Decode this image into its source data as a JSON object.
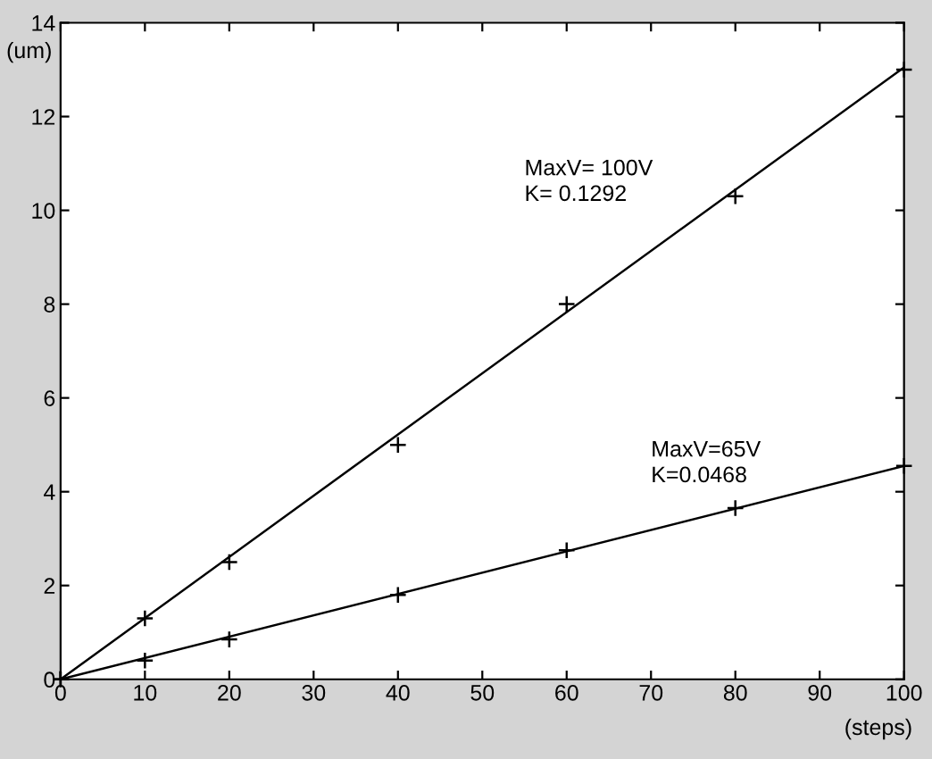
{
  "chart_data": {
    "type": "scatter",
    "xlabel": "(steps)",
    "ylabel": "(um)",
    "xlim": [
      0,
      100
    ],
    "ylim": [
      0,
      14
    ],
    "xticks": [
      0,
      10,
      20,
      30,
      40,
      50,
      60,
      70,
      80,
      90,
      100
    ],
    "yticks": [
      0,
      2,
      4,
      6,
      8,
      10,
      12,
      14
    ],
    "marker": "cross",
    "grid": false,
    "legend": false,
    "series": [
      {
        "color": "#000000",
        "x": [
          0,
          10,
          20,
          40,
          60,
          80,
          100
        ],
        "values": [
          0,
          1.3,
          2.5,
          5.0,
          8.0,
          10.3,
          13.0
        ]
      },
      {
        "color": "#000000",
        "x": [
          0,
          10,
          20,
          40,
          60,
          80,
          100
        ],
        "values": [
          0,
          0.4,
          0.85,
          1.8,
          2.75,
          3.65,
          4.55
        ]
      },
      {
        "type": "line",
        "color": "#000000",
        "x": [
          0,
          100
        ],
        "values": [
          0,
          13.05
        ],
        "marker": "none"
      },
      {
        "type": "line",
        "color": "#000000",
        "x": [
          0,
          100
        ],
        "values": [
          0,
          4.55
        ],
        "marker": "none"
      }
    ],
    "annotations": [
      "MaxV= 100V\nK= 0.1292",
      "MaxV=65V\nK=0.0468"
    ]
  }
}
